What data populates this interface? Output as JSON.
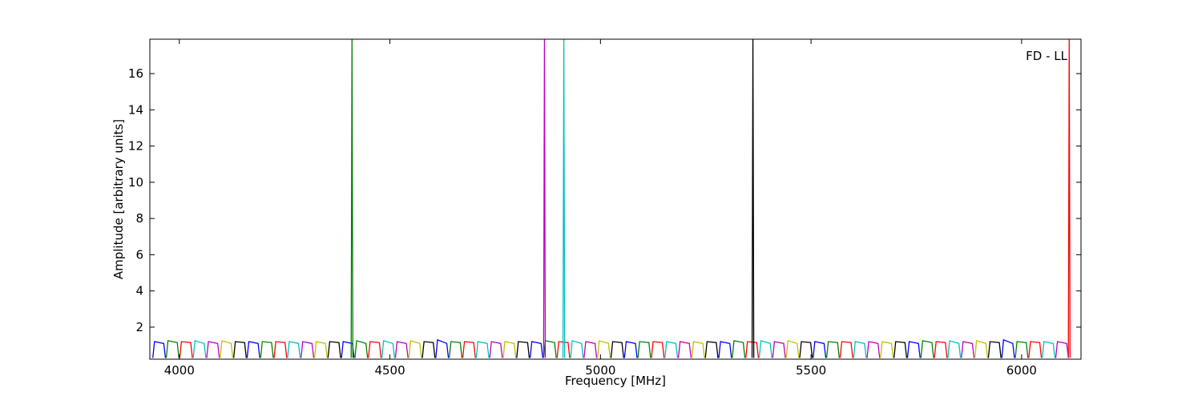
{
  "chart_data": {
    "type": "line",
    "xlabel": "Frequency [MHz]",
    "ylabel": "Amplitude [arbitrary units]",
    "annotation": "FD - LL",
    "xlim": [
      3930,
      6141
    ],
    "xticks": [
      4000,
      4500,
      5000,
      5500,
      6000
    ],
    "ylim": [
      0.23,
      17.9
    ],
    "yticks": [
      2,
      4,
      6,
      8,
      10,
      12,
      14,
      16
    ],
    "series": [
      {
        "color": "#0000ff",
        "x": [
          3937,
          3941,
          3963,
          3967,
          null,
          4161,
          4165,
          4187,
          4191,
          null,
          4385,
          4389,
          4411,
          4415,
          null,
          4609,
          4613,
          4635,
          4639,
          null,
          4833,
          4837,
          4859,
          4863,
          null,
          5057,
          5061,
          5083,
          5087,
          null,
          5281,
          5285,
          5307,
          5311,
          null,
          5505,
          5509,
          5531,
          5535,
          null,
          5729,
          5733,
          5755,
          5759,
          null,
          5953,
          5957,
          5979,
          5983
        ],
        "values": [
          0.3,
          1.2,
          1.1,
          0.3,
          null,
          0.3,
          1.2,
          1.1,
          0.3,
          null,
          0.3,
          1.2,
          1.1,
          0.3,
          null,
          0.3,
          1.3,
          1.1,
          0.3,
          null,
          0.3,
          1.2,
          1.1,
          0.3,
          null,
          0.3,
          1.2,
          1.1,
          0.3,
          null,
          0.3,
          1.2,
          1.1,
          0.3,
          null,
          0.3,
          1.2,
          1.1,
          0.3,
          null,
          0.3,
          1.2,
          1.1,
          0.3,
          null,
          0.3,
          1.3,
          1.1,
          0.3
        ]
      },
      {
        "color": "#008000",
        "x": [
          3969,
          3973,
          3995,
          3999,
          null,
          4193,
          4197,
          4219,
          4223,
          null,
          4417,
          4421,
          4443,
          4447,
          null,
          4641,
          4645,
          4667,
          4671,
          null,
          4865,
          4869,
          4891,
          4895,
          null,
          5089,
          5093,
          5115,
          5119,
          null,
          5313,
          5317,
          5339,
          5343,
          null,
          5537,
          5541,
          5563,
          5567,
          null,
          5761,
          5765,
          5787,
          5791,
          null,
          5985,
          5989,
          6011,
          6015,
          null,
          4408,
          4410,
          4412
        ],
        "values": [
          0.3,
          1.25,
          1.15,
          0.3,
          null,
          0.3,
          1.2,
          1.15,
          0.3,
          null,
          0.3,
          1.25,
          1.1,
          0.3,
          null,
          0.3,
          1.2,
          1.15,
          0.3,
          null,
          0.3,
          1.25,
          1.15,
          0.3,
          null,
          0.3,
          1.2,
          1.15,
          0.3,
          null,
          0.3,
          1.25,
          1.15,
          0.3,
          null,
          0.3,
          1.2,
          1.15,
          0.3,
          null,
          0.3,
          1.25,
          1.15,
          0.3,
          null,
          0.3,
          1.2,
          1.15,
          0.3,
          null,
          0.3,
          18,
          0.3
        ]
      },
      {
        "color": "#ff0000",
        "x": [
          4001,
          4005,
          4027,
          4031,
          null,
          4225,
          4229,
          4251,
          4255,
          null,
          4449,
          4453,
          4475,
          4479,
          null,
          4673,
          4677,
          4699,
          4703,
          null,
          4897,
          4901,
          4923,
          4927,
          null,
          5121,
          5125,
          5147,
          5151,
          null,
          5345,
          5349,
          5371,
          5375,
          null,
          5569,
          5573,
          5595,
          5599,
          null,
          5793,
          5797,
          5819,
          5823,
          null,
          6017,
          6021,
          6043,
          6047,
          null,
          6111,
          6113,
          6115
        ],
        "values": [
          0.3,
          1.2,
          1.15,
          0.3,
          null,
          0.3,
          1.2,
          1.15,
          0.3,
          null,
          0.3,
          1.2,
          1.15,
          0.3,
          null,
          0.3,
          1.2,
          1.15,
          0.3,
          null,
          0.3,
          1.2,
          1.15,
          0.3,
          null,
          0.3,
          1.2,
          1.15,
          0.3,
          null,
          0.3,
          1.2,
          1.15,
          0.3,
          null,
          0.3,
          1.2,
          1.15,
          0.3,
          null,
          0.3,
          1.2,
          1.15,
          0.3,
          null,
          0.3,
          1.2,
          1.15,
          0.3,
          null,
          0.3,
          18,
          0.3
        ]
      },
      {
        "color": "#00bfbf",
        "x": [
          4033,
          4037,
          4059,
          4063,
          null,
          4257,
          4261,
          4283,
          4287,
          null,
          4481,
          4485,
          4507,
          4511,
          null,
          4705,
          4709,
          4731,
          4735,
          null,
          4929,
          4933,
          4955,
          4959,
          null,
          5153,
          5157,
          5179,
          5183,
          null,
          5377,
          5381,
          5403,
          5407,
          null,
          5601,
          5605,
          5627,
          5631,
          null,
          5825,
          5829,
          5851,
          5855,
          null,
          6049,
          6053,
          6075,
          6079,
          null,
          4911,
          4913,
          4915
        ],
        "values": [
          0.3,
          1.25,
          1.1,
          0.3,
          null,
          0.3,
          1.2,
          1.1,
          0.3,
          null,
          0.3,
          1.25,
          1.1,
          0.3,
          null,
          0.3,
          1.2,
          1.1,
          0.3,
          null,
          0.3,
          1.25,
          1.1,
          0.3,
          null,
          0.3,
          1.2,
          1.1,
          0.3,
          null,
          0.3,
          1.25,
          1.1,
          0.3,
          null,
          0.3,
          1.2,
          1.1,
          0.3,
          null,
          0.3,
          1.25,
          1.1,
          0.3,
          null,
          0.3,
          1.2,
          1.1,
          0.3,
          null,
          0.3,
          18,
          0.3
        ]
      },
      {
        "color": "#bf00bf",
        "x": [
          4065,
          4069,
          4091,
          4095,
          null,
          4289,
          4293,
          4315,
          4319,
          null,
          4513,
          4517,
          4539,
          4543,
          null,
          4737,
          4741,
          4763,
          4767,
          null,
          4961,
          4965,
          4987,
          4991,
          null,
          5185,
          5189,
          5211,
          5215,
          null,
          5409,
          5413,
          5435,
          5439,
          null,
          5633,
          5637,
          5659,
          5663,
          null,
          5857,
          5861,
          5883,
          5887,
          null,
          6081,
          6085,
          6107,
          6111,
          null,
          4865,
          4867,
          4869
        ],
        "values": [
          0.3,
          1.2,
          1.1,
          0.3,
          null,
          0.3,
          1.2,
          1.1,
          0.3,
          null,
          0.3,
          1.2,
          1.1,
          0.3,
          null,
          0.3,
          1.2,
          1.1,
          0.3,
          null,
          0.3,
          1.2,
          1.1,
          0.3,
          null,
          0.3,
          1.2,
          1.1,
          0.3,
          null,
          0.3,
          1.2,
          1.1,
          0.3,
          null,
          0.3,
          1.2,
          1.1,
          0.3,
          null,
          0.3,
          1.2,
          1.1,
          0.3,
          null,
          0.3,
          1.2,
          1.1,
          0.3,
          null,
          0.3,
          18,
          0.3
        ]
      },
      {
        "color": "#bfbf00",
        "x": [
          4097,
          4101,
          4123,
          4127,
          null,
          4321,
          4325,
          4347,
          4351,
          null,
          4545,
          4549,
          4571,
          4575,
          null,
          4769,
          4773,
          4795,
          4799,
          null,
          4993,
          4997,
          5019,
          5023,
          null,
          5217,
          5221,
          5243,
          5247,
          null,
          5441,
          5445,
          5467,
          5471,
          null,
          5665,
          5669,
          5691,
          5695,
          null,
          5889,
          5893,
          5915,
          5919
        ],
        "values": [
          0.3,
          1.25,
          1.1,
          0.3,
          null,
          0.3,
          1.2,
          1.1,
          0.3,
          null,
          0.3,
          1.25,
          1.1,
          0.3,
          null,
          0.3,
          1.2,
          1.1,
          0.3,
          null,
          0.3,
          1.25,
          1.1,
          0.3,
          null,
          0.3,
          1.2,
          1.1,
          0.3,
          null,
          0.3,
          1.25,
          1.1,
          0.3,
          null,
          0.3,
          1.2,
          1.1,
          0.3,
          null,
          0.3,
          1.25,
          1.1,
          0.3
        ]
      },
      {
        "color": "#000000",
        "x": [
          4129,
          4133,
          4155,
          4159,
          null,
          4353,
          4357,
          4379,
          4383,
          null,
          4577,
          4581,
          4603,
          4607,
          null,
          4801,
          4805,
          4827,
          4831,
          null,
          5025,
          5029,
          5051,
          5055,
          null,
          5249,
          5253,
          5275,
          5279,
          null,
          5473,
          5477,
          5499,
          5503,
          null,
          5697,
          5701,
          5723,
          5727,
          null,
          5921,
          5925,
          5947,
          5951,
          null,
          5360,
          5362,
          5364
        ],
        "values": [
          0.3,
          1.2,
          1.15,
          0.3,
          null,
          0.3,
          1.2,
          1.15,
          0.3,
          null,
          0.3,
          1.2,
          1.15,
          0.3,
          null,
          0.3,
          1.2,
          1.15,
          0.3,
          null,
          0.3,
          1.2,
          1.15,
          0.3,
          null,
          0.3,
          1.2,
          1.15,
          0.3,
          null,
          0.3,
          1.2,
          1.15,
          0.3,
          null,
          0.3,
          1.2,
          1.15,
          0.3,
          null,
          0.3,
          1.2,
          1.15,
          0.3,
          null,
          0.3,
          18,
          0.3
        ]
      }
    ]
  }
}
